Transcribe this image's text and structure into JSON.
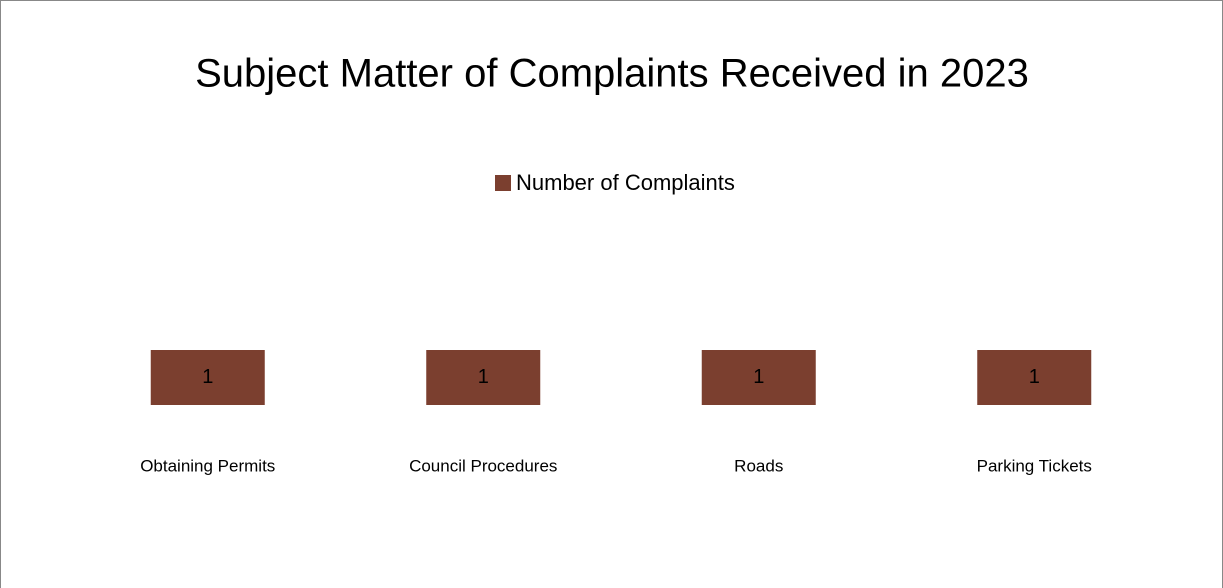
{
  "chart_data": {
    "type": "bar",
    "title": "Subject Matter of Complaints Received in 2023",
    "categories": [
      "Obtaining Permits",
      "Council Procedures",
      "Roads",
      "Parking Tickets"
    ],
    "series": [
      {
        "name": "Number of Complaints",
        "color": "#7b3f2f",
        "values": [
          1,
          1,
          1,
          1
        ]
      }
    ],
    "legend": "top",
    "data_labels": true
  }
}
